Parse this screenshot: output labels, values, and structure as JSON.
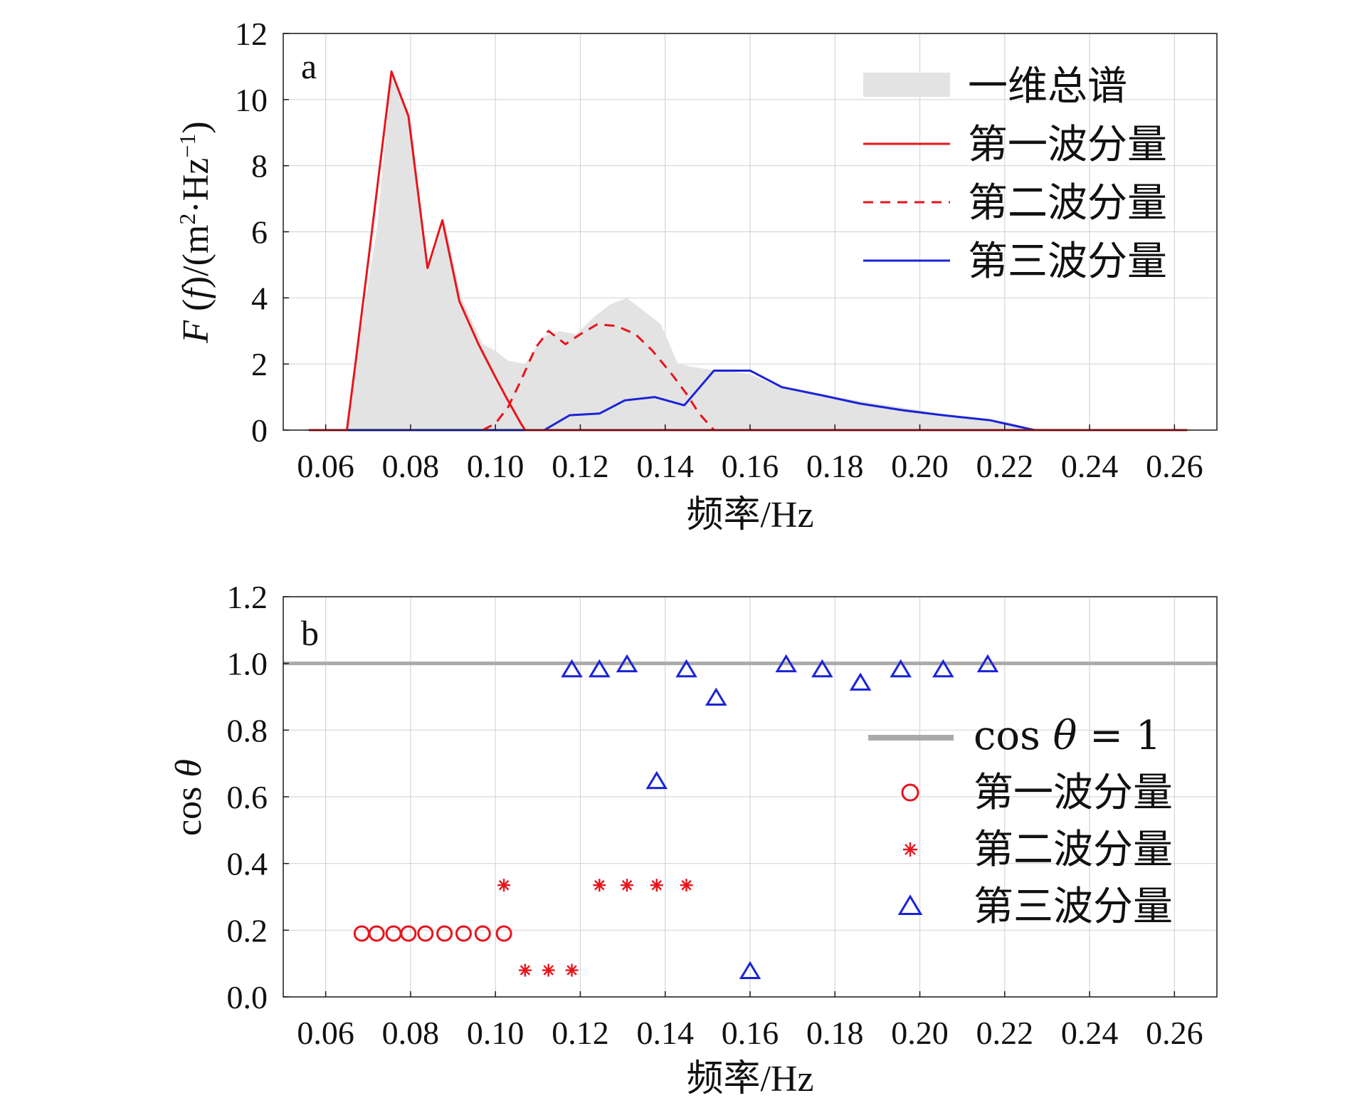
{
  "chart_data": [
    {
      "id": "a",
      "type": "area",
      "panel_label": "a",
      "xlabel": "频率/Hz",
      "ylabel": "F (f)/(m²·Hz⁻¹)",
      "ylabel_parts": {
        "F": "F",
        "open": " (",
        "f": "f",
        "mid": ")/(m",
        "sup2": "2",
        "hz": "·Hz",
        "supm1": "−1",
        "close": ")"
      },
      "xlim": [
        0.05,
        0.27
      ],
      "ylim": [
        0,
        12
      ],
      "xticks": [
        0.06,
        0.08,
        0.1,
        0.12,
        0.14,
        0.16,
        0.18,
        0.2,
        0.22,
        0.24,
        0.26
      ],
      "xtick_labels": [
        "0.06",
        "0.08",
        "0.10",
        "0.12",
        "0.14",
        "0.16",
        "0.18",
        "0.20",
        "0.22",
        "0.24",
        "0.26"
      ],
      "yticks": [
        0,
        2,
        4,
        6,
        8,
        10,
        12
      ],
      "ytick_labels": [
        "0",
        "2",
        "4",
        "6",
        "8",
        "10",
        "12"
      ],
      "grid": true,
      "legend_position": "top-right",
      "series": [
        {
          "name": "一维总谱",
          "style": "fill",
          "color": "#e3e3e3",
          "x": [
            0.056,
            0.065,
            0.067,
            0.072,
            0.0755,
            0.08,
            0.084,
            0.088,
            0.092,
            0.097,
            0.1,
            0.103,
            0.107,
            0.111,
            0.115,
            0.119,
            0.123,
            0.127,
            0.131,
            0.135,
            0.139,
            0.143,
            0.147,
            0.152,
            0.157,
            0.16,
            0.167,
            0.175,
            0.185,
            0.2,
            0.205,
            0.215,
            0.222,
            0.226,
            0.263
          ],
          "y": [
            0,
            0,
            2.0,
            6.0,
            10.8,
            9.5,
            4.8,
            6.3,
            4.0,
            2.6,
            2.4,
            2.1,
            2.0,
            2.8,
            3.0,
            2.9,
            3.4,
            3.8,
            4.0,
            3.6,
            3.2,
            2.0,
            1.9,
            1.8,
            1.75,
            1.7,
            1.3,
            1.1,
            0.9,
            0.6,
            0.45,
            0.35,
            0.2,
            0.05,
            0
          ]
        },
        {
          "name": "第一波分量",
          "style": "solid",
          "color": "#e8141c",
          "x": [
            0.056,
            0.065,
            0.067,
            0.0705,
            0.0755,
            0.0795,
            0.084,
            0.0875,
            0.0915,
            0.096,
            0.1,
            0.1025,
            0.106,
            0.107,
            0.263
          ],
          "y": [
            0,
            0,
            2.0,
            5.6,
            10.85,
            9.5,
            4.9,
            6.35,
            3.9,
            2.6,
            1.6,
            1.0,
            0.2,
            0,
            0
          ]
        },
        {
          "name": "第二波分量",
          "style": "dashed",
          "color": "#e8141c",
          "x": [
            0.097,
            0.1,
            0.103,
            0.106,
            0.1095,
            0.1125,
            0.1165,
            0.12,
            0.124,
            0.1285,
            0.133,
            0.137,
            0.1415,
            0.145,
            0.148,
            0.1515
          ],
          "y": [
            0,
            0.2,
            0.7,
            1.5,
            2.5,
            3.0,
            2.6,
            2.9,
            3.2,
            3.15,
            2.9,
            2.4,
            1.7,
            1.1,
            0.5,
            0
          ]
        },
        {
          "name": "第三波分量",
          "style": "solid",
          "color": "#1a23d6",
          "x": [
            0.056,
            0.1115,
            0.1175,
            0.1245,
            0.1305,
            0.1375,
            0.1445,
            0.1515,
            0.16,
            0.1675,
            0.177,
            0.186,
            0.196,
            0.2055,
            0.2165,
            0.227,
            0.263
          ],
          "y": [
            0,
            0,
            0.45,
            0.5,
            0.9,
            1.0,
            0.75,
            1.8,
            1.8,
            1.3,
            1.05,
            0.8,
            0.6,
            0.45,
            0.3,
            0,
            0
          ]
        }
      ]
    },
    {
      "id": "b",
      "type": "scatter",
      "panel_label": "b",
      "xlabel": "频率/Hz",
      "ylabel": "cos θ",
      "ylabel_parts": {
        "cos": "cos ",
        "theta": "θ"
      },
      "xlim": [
        0.05,
        0.27
      ],
      "ylim": [
        0,
        1.2
      ],
      "xticks": [
        0.06,
        0.08,
        0.1,
        0.12,
        0.14,
        0.16,
        0.18,
        0.2,
        0.22,
        0.24,
        0.26
      ],
      "xtick_labels": [
        "0.06",
        "0.08",
        "0.10",
        "0.12",
        "0.14",
        "0.16",
        "0.18",
        "0.20",
        "0.22",
        "0.24",
        "0.26"
      ],
      "yticks": [
        0,
        0.2,
        0.4,
        0.6,
        0.8,
        1.0,
        1.2
      ],
      "ytick_labels": [
        "0.0",
        "0.2",
        "0.4",
        "0.6",
        "0.8",
        "1.0",
        "1.2"
      ],
      "grid": true,
      "legend_position": "right",
      "reference_line": {
        "y": 1.0,
        "color": "#aaaaaa",
        "name_parts": {
          "cos": "cos ",
          "theta": "θ",
          "eq": " = 1"
        }
      },
      "series": [
        {
          "name": "第一波分量",
          "marker": "circle",
          "color": "#e8141c",
          "x": [
            0.0685,
            0.072,
            0.076,
            0.0795,
            0.0835,
            0.088,
            0.0925,
            0.097,
            0.102
          ],
          "y": [
            0.19,
            0.19,
            0.19,
            0.19,
            0.19,
            0.19,
            0.19,
            0.19,
            0.19
          ]
        },
        {
          "name": "第二波分量",
          "marker": "star",
          "color": "#e8141c",
          "x": [
            0.102,
            0.107,
            0.1125,
            0.118,
            0.1245,
            0.131,
            0.138,
            0.145
          ],
          "y": [
            0.335,
            0.08,
            0.08,
            0.08,
            0.335,
            0.335,
            0.335,
            0.335
          ]
        },
        {
          "name": "第三波分量",
          "marker": "triangle",
          "color": "#1a23d6",
          "x": [
            0.118,
            0.1245,
            0.131,
            0.138,
            0.145,
            0.152,
            0.16,
            0.1685,
            0.177,
            0.186,
            0.1955,
            0.2055,
            0.216
          ],
          "y": [
            0.985,
            0.985,
            1.0,
            0.65,
            0.985,
            0.9,
            0.08,
            1.0,
            0.985,
            0.945,
            0.985,
            0.985,
            1.0
          ]
        }
      ]
    }
  ],
  "colors": {
    "axis": "#1a1a1a",
    "grid": "#d6d6d6",
    "red": "#e8141c",
    "blue": "#1a23d6",
    "fill": "#e3e3e3",
    "refline": "#aaaaaa"
  }
}
